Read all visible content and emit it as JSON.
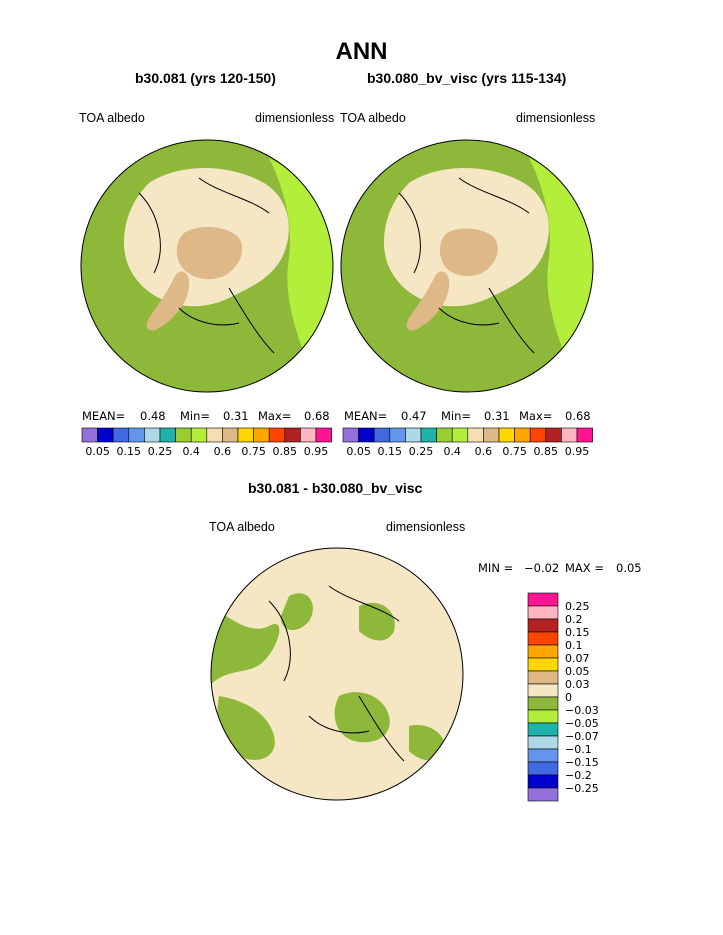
{
  "title": "ANN",
  "panels": [
    {
      "title": "b30.081 (yrs 120-150)",
      "left_label": "TOA albedo",
      "right_label": "dimensionless",
      "stats": {
        "mean_label": "MEAN=",
        "mean": "0.48",
        "min_label": "Min=",
        "min": "0.31",
        "max_label": "Max=",
        "max": "0.68"
      }
    },
    {
      "title": "b30.080_bv_visc (yrs 115-134)",
      "left_label": "TOA albedo",
      "right_label": "dimensionless",
      "stats": {
        "mean_label": "MEAN=",
        "mean": "0.47",
        "min_label": "Min=",
        "min": "0.31",
        "max_label": "Max=",
        "max": "0.68"
      }
    }
  ],
  "top_colorbar": {
    "colors": [
      "#9370DB",
      "#0000CD",
      "#4169E1",
      "#6495ED",
      "#ADD8E6",
      "#20B2AA",
      "#9ACD32",
      "#B3EE3A",
      "#F5DEB3",
      "#DEB887",
      "#FFD700",
      "#FFA500",
      "#FF4500",
      "#B22222",
      "#FFB6C1",
      "#FF1493"
    ],
    "labels": [
      "0.05",
      "0.15",
      "0.25",
      "0.4",
      "0.6",
      "0.75",
      "0.85",
      "0.95"
    ]
  },
  "diff_panel": {
    "title": "b30.081 - b30.080_bv_visc",
    "left_label": "TOA albedo",
    "right_label": "dimensionless",
    "stats": {
      "min_label": "MIN =",
      "min": "−0.02",
      "max_label": "MAX =",
      "max": "0.05"
    }
  },
  "diff_colorbar": {
    "colors_top_to_bottom": [
      "#FF1493",
      "#FFB6C1",
      "#B22222",
      "#FF4500",
      "#FFA500",
      "#FFD700",
      "#DEB887",
      "#F5E6C4",
      "#8DB83A",
      "#B3EE3A",
      "#20B2AA",
      "#ADD8E6",
      "#6495ED",
      "#4169E1",
      "#0000CD",
      "#9370DB"
    ],
    "labels_top_to_bottom": [
      "0.25",
      "0.2",
      "0.15",
      "0.1",
      "0.07",
      "0.05",
      "0.03",
      "0",
      "−0.03",
      "−0.05",
      "−0.07",
      "−0.1",
      "−0.15",
      "−0.2",
      "−0.25"
    ]
  },
  "map_colors": {
    "green": "#8DB83A",
    "light_green": "#B3EE3A",
    "wheat": "#F5E6C4",
    "tan": "#DEB887"
  }
}
